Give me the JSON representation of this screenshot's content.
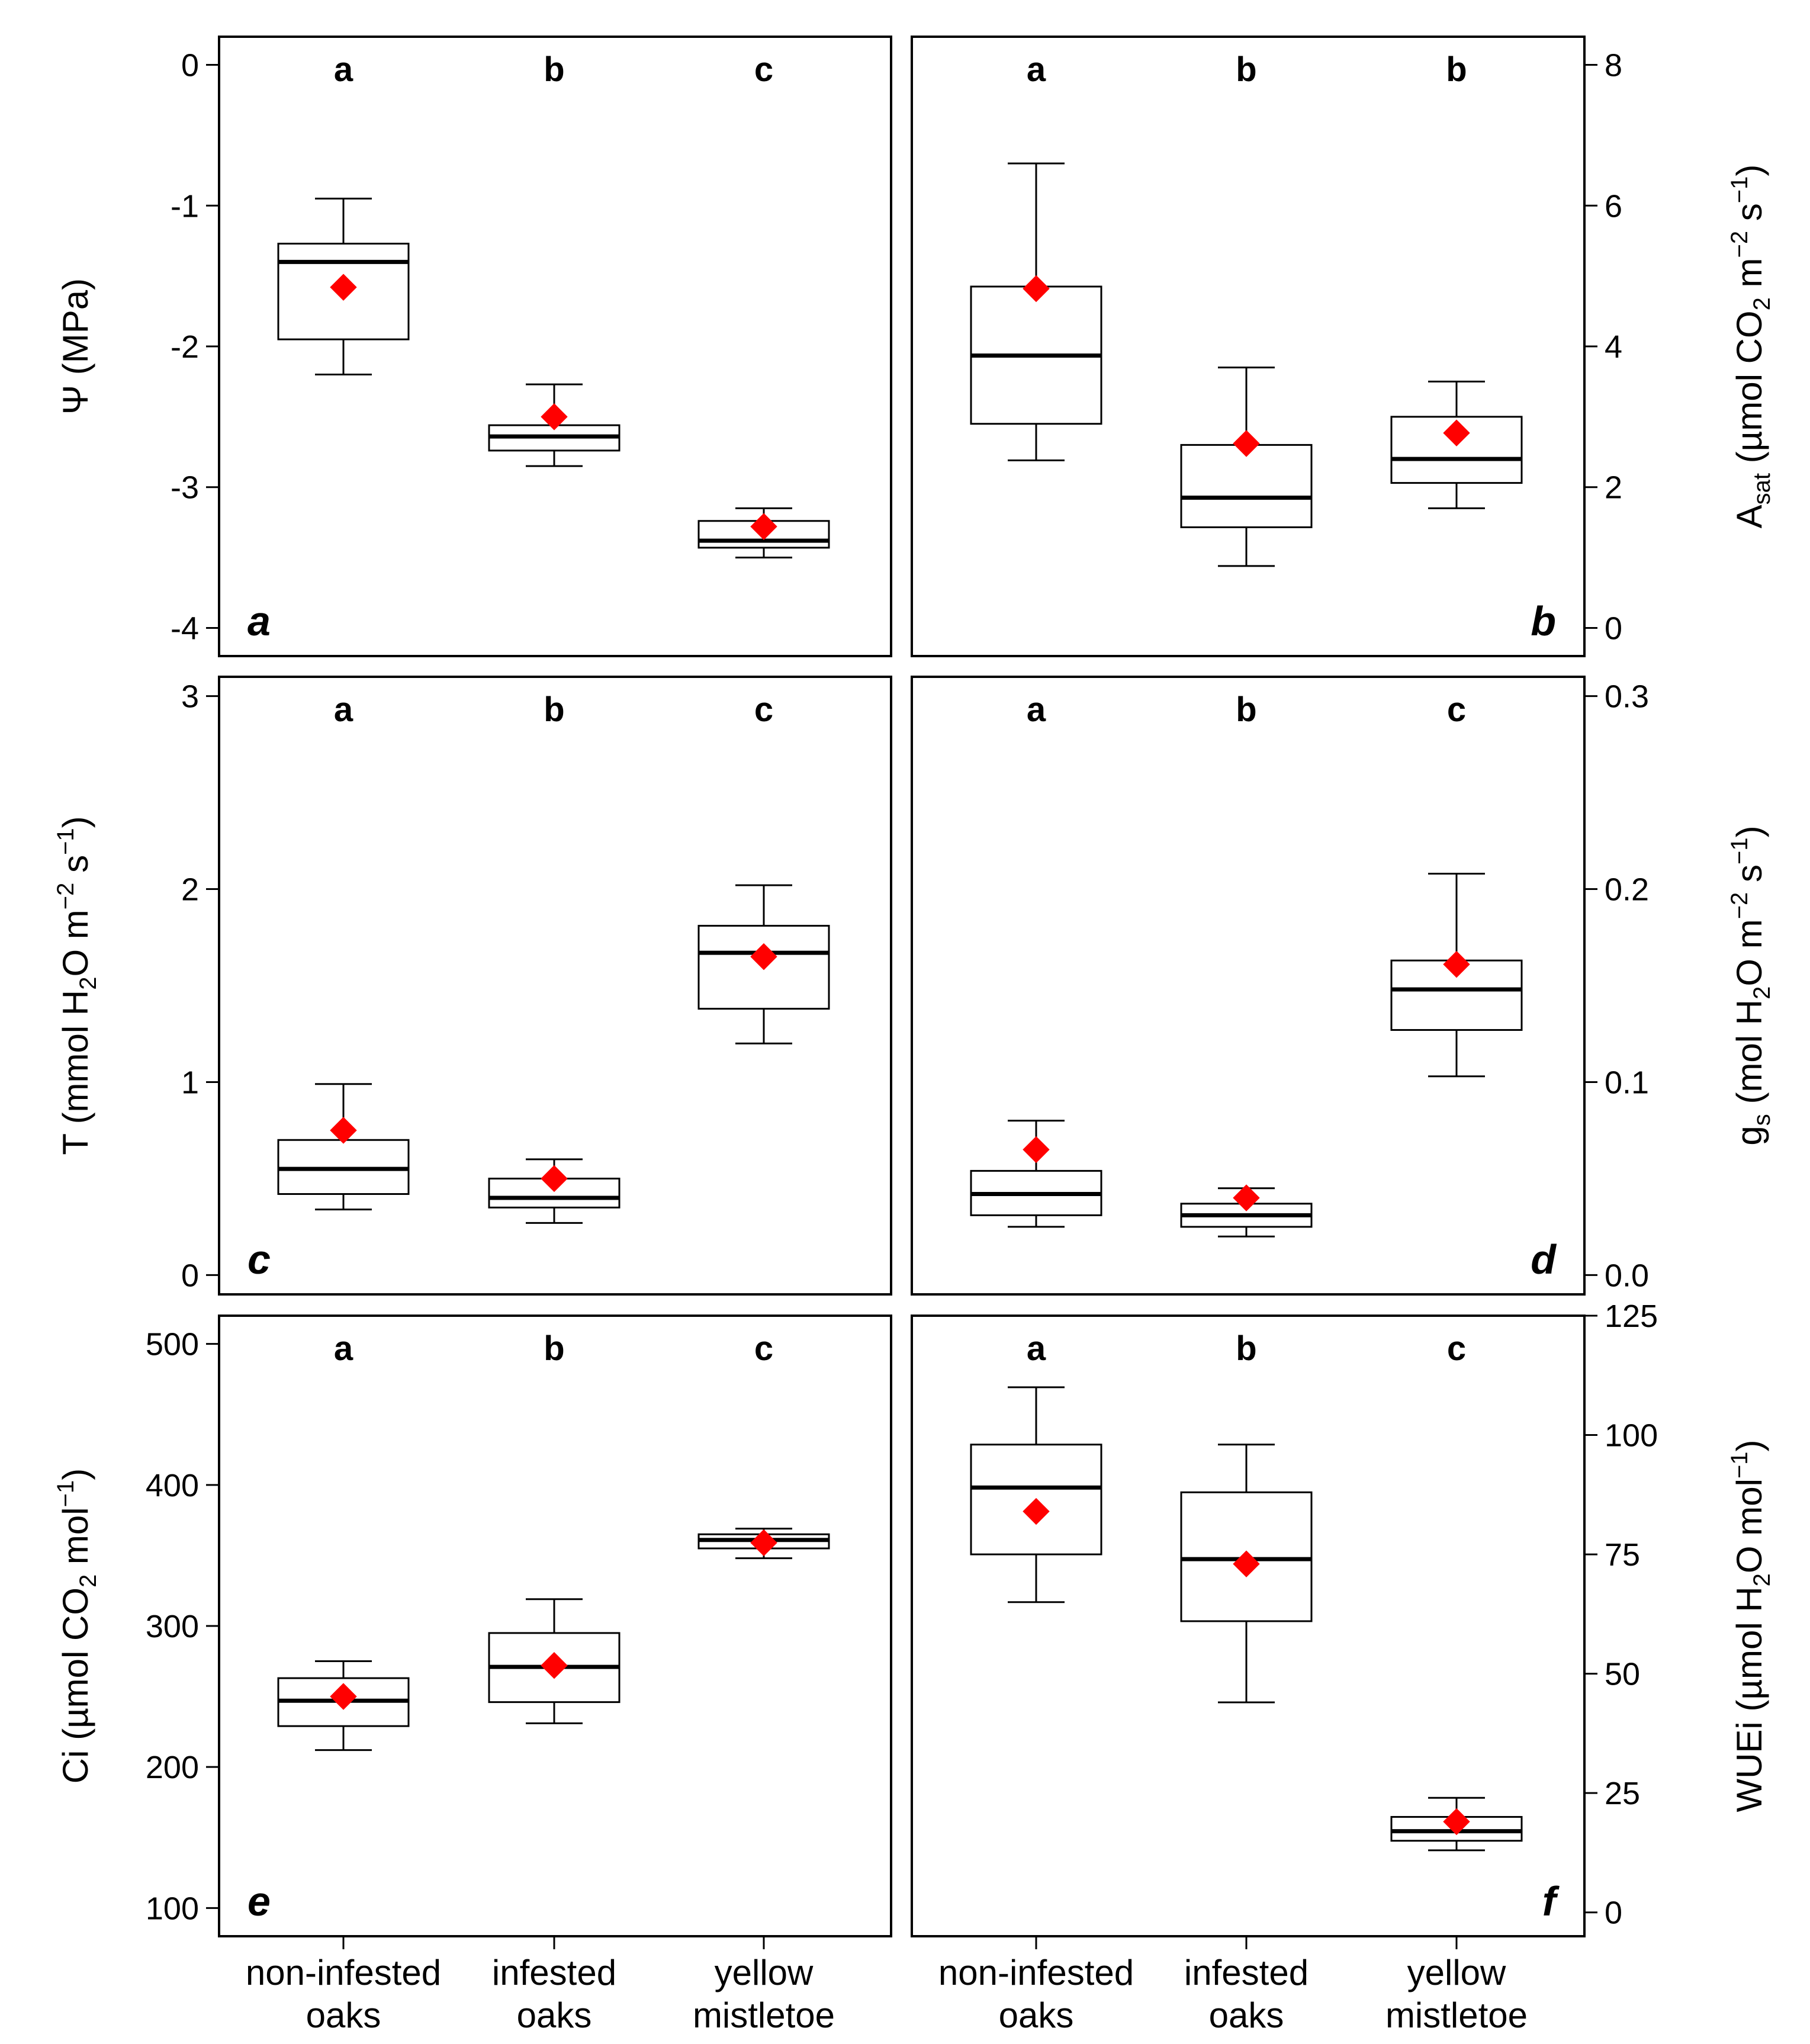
{
  "chart_data": [
    {
      "type": "box",
      "panel": "a",
      "ylabel": [
        "Ψ (MPa)"
      ],
      "ylim": [
        -4.2,
        0.2
      ],
      "yticks": [
        0,
        -1,
        -2,
        -3,
        -4
      ],
      "yticklabels": [
        "0",
        "-1",
        "-2",
        "-3",
        "-4"
      ],
      "categories": [
        "non-infested oaks",
        "infested oaks",
        "yellow mistletoe"
      ],
      "significance": [
        "a",
        "b",
        "c"
      ],
      "boxes": [
        {
          "whisker_low": -2.2,
          "q1": -1.95,
          "median": -1.4,
          "q3": -1.27,
          "whisker_high": -0.95,
          "mean": -1.58
        },
        {
          "whisker_low": -2.85,
          "q1": -2.74,
          "median": -2.64,
          "q3": -2.56,
          "whisker_high": -2.27,
          "mean": -2.5
        },
        {
          "whisker_low": -3.5,
          "q1": -3.43,
          "median": -3.38,
          "q3": -3.24,
          "whisker_high": -3.15,
          "mean": -3.28
        }
      ]
    },
    {
      "type": "box",
      "panel": "b",
      "ylabel": [
        "A",
        "sat",
        " (µmol CO",
        "2",
        " m",
        "−2",
        " s",
        "−1",
        ")"
      ],
      "ylim": [
        -0.4,
        8.4
      ],
      "yticks": [
        0,
        2,
        4,
        6,
        8
      ],
      "yticklabels": [
        "0",
        "2",
        "4",
        "6",
        "8"
      ],
      "categories": [
        "non-infested oaks",
        "infested oaks",
        "yellow mistletoe"
      ],
      "significance": [
        "a",
        "b",
        "b"
      ],
      "boxes": [
        {
          "whisker_low": 2.38,
          "q1": 2.9,
          "median": 3.87,
          "q3": 4.85,
          "whisker_high": 6.6,
          "mean": 4.82
        },
        {
          "whisker_low": 0.88,
          "q1": 1.43,
          "median": 1.85,
          "q3": 2.6,
          "whisker_high": 3.7,
          "mean": 2.62
        },
        {
          "whisker_low": 1.7,
          "q1": 2.06,
          "median": 2.4,
          "q3": 3.0,
          "whisker_high": 3.5,
          "mean": 2.77
        }
      ]
    },
    {
      "type": "box",
      "panel": "c",
      "ylabel": [
        "T (mmol H",
        "2",
        "O m",
        "−2",
        " s",
        "−1",
        ")"
      ],
      "ylim": [
        -0.1,
        3.1
      ],
      "yticks": [
        0,
        1,
        2,
        3
      ],
      "yticklabels": [
        "0",
        "1",
        "2",
        "3"
      ],
      "categories": [
        "non-infested oaks",
        "infested oaks",
        "yellow mistletoe"
      ],
      "significance": [
        "a",
        "b",
        "c"
      ],
      "boxes": [
        {
          "whisker_low": 0.34,
          "q1": 0.42,
          "median": 0.55,
          "q3": 0.7,
          "whisker_high": 0.99,
          "mean": 0.75
        },
        {
          "whisker_low": 0.27,
          "q1": 0.35,
          "median": 0.4,
          "q3": 0.5,
          "whisker_high": 0.6,
          "mean": 0.5
        },
        {
          "whisker_low": 1.2,
          "q1": 1.38,
          "median": 1.67,
          "q3": 1.81,
          "whisker_high": 2.02,
          "mean": 1.65
        }
      ]
    },
    {
      "type": "box",
      "panel": "d",
      "ylabel": [
        "g",
        "s",
        " (mol H",
        "2",
        "O m",
        "−2",
        " s",
        "−1",
        ")"
      ],
      "ylim": [
        -0.01,
        0.31
      ],
      "yticks": [
        0.0,
        0.1,
        0.2,
        0.3
      ],
      "yticklabels": [
        "0.0",
        "0.1",
        "0.2",
        "0.3"
      ],
      "categories": [
        "non-infested oaks",
        "infested oaks",
        "yellow mistletoe"
      ],
      "significance": [
        "a",
        "b",
        "c"
      ],
      "boxes": [
        {
          "whisker_low": 0.025,
          "q1": 0.031,
          "median": 0.042,
          "q3": 0.054,
          "whisker_high": 0.08,
          "mean": 0.065
        },
        {
          "whisker_low": 0.02,
          "q1": 0.025,
          "median": 0.031,
          "q3": 0.037,
          "whisker_high": 0.045,
          "mean": 0.04
        },
        {
          "whisker_low": 0.103,
          "q1": 0.127,
          "median": 0.148,
          "q3": 0.163,
          "whisker_high": 0.208,
          "mean": 0.161
        }
      ]
    },
    {
      "type": "box",
      "panel": "e",
      "ylabel": [
        "Ci (µmol CO",
        "2",
        " mol",
        "−1",
        ")"
      ],
      "ylim": [
        80,
        520
      ],
      "yticks": [
        100,
        200,
        300,
        400,
        500
      ],
      "yticklabels": [
        "100",
        "200",
        "300",
        "400",
        "500"
      ],
      "categories": [
        "non-infested oaks",
        "infested oaks",
        "yellow mistletoe"
      ],
      "significance": [
        "a",
        "b",
        "c"
      ],
      "boxes": [
        {
          "whisker_low": 212,
          "q1": 229,
          "median": 247,
          "q3": 263,
          "whisker_high": 275,
          "mean": 250
        },
        {
          "whisker_low": 231,
          "q1": 246,
          "median": 271,
          "q3": 295,
          "whisker_high": 319,
          "mean": 272
        },
        {
          "whisker_low": 348,
          "q1": 355,
          "median": 361,
          "q3": 365,
          "whisker_high": 369,
          "mean": 359
        }
      ]
    },
    {
      "type": "box",
      "panel": "f",
      "ylabel": [
        "WUEi (µmol H",
        "2",
        "O mol",
        "−1",
        ")"
      ],
      "ylim": [
        -5,
        125
      ],
      "yticks": [
        0,
        25,
        50,
        75,
        100,
        125
      ],
      "yticklabels": [
        "0",
        "25",
        "50",
        "75",
        "100",
        "125"
      ],
      "categories": [
        "non-infested oaks",
        "infested oaks",
        "yellow mistletoe"
      ],
      "significance": [
        "a",
        "b",
        "c"
      ],
      "boxes": [
        {
          "whisker_low": 65,
          "q1": 75,
          "median": 89,
          "q3": 98,
          "whisker_high": 110,
          "mean": 84
        },
        {
          "whisker_low": 44,
          "q1": 61,
          "median": 74,
          "q3": 88,
          "whisker_high": 98,
          "mean": 73
        },
        {
          "whisker_low": 13,
          "q1": 15,
          "median": 17,
          "q3": 20,
          "whisker_high": 24,
          "mean": 19
        }
      ]
    }
  ],
  "x_labels": [
    [
      "non-infested",
      "oaks"
    ],
    [
      "infested",
      "oaks"
    ],
    [
      "yellow",
      "mistletoe"
    ]
  ],
  "colors": {
    "mean_marker": "#ff0000",
    "box_stroke": "#000000",
    "background": "#ffffff"
  }
}
